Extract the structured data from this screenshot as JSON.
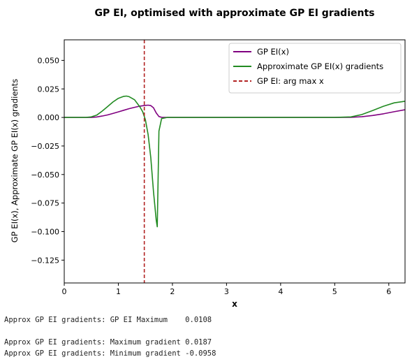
{
  "chart_data": {
    "type": "line",
    "title": "GP EI, optimised with approximate GP EI gradients",
    "xlabel": "x",
    "ylabel": "GP EI(x), Approximate GP EI(x) gradients",
    "xlim": [
      0,
      6.3
    ],
    "ylim": [
      -0.145,
      0.068
    ],
    "xticks": [
      "0",
      "1",
      "2",
      "3",
      "4",
      "5",
      "6"
    ],
    "yticks": [
      "0.050",
      "0.025",
      "0.000",
      "−0.025",
      "−0.050",
      "−0.075",
      "−0.100",
      "−0.125"
    ],
    "grid": false,
    "legend_position": "top-right",
    "series": [
      {
        "name": "GP EI(x)",
        "color": "#800080",
        "x": [
          0,
          0.5,
          0.6,
          0.7,
          0.8,
          0.9,
          1.0,
          1.1,
          1.2,
          1.3,
          1.4,
          1.5,
          1.55,
          1.6,
          1.65,
          1.7,
          1.75,
          1.8,
          2.0,
          3.0,
          4.0,
          5.0,
          5.3,
          5.5,
          5.7,
          5.9,
          6.1,
          6.3
        ],
        "y": [
          0,
          0,
          0.0004,
          0.0012,
          0.0022,
          0.0035,
          0.0049,
          0.0063,
          0.0077,
          0.0089,
          0.0099,
          0.0106,
          0.0108,
          0.0104,
          0.0085,
          0.004,
          0.0008,
          0.0001,
          0,
          0,
          0,
          0,
          0.0001,
          0.0006,
          0.0017,
          0.0032,
          0.005,
          0.0068
        ]
      },
      {
        "name": "Approximate GP EI(x) gradients",
        "color": "#228b22",
        "x": [
          0,
          0.4,
          0.5,
          0.6,
          0.7,
          0.8,
          0.9,
          1.0,
          1.1,
          1.15,
          1.2,
          1.3,
          1.4,
          1.45,
          1.5,
          1.55,
          1.6,
          1.65,
          1.7,
          1.72,
          1.75,
          1.8,
          1.9,
          2.0,
          3.0,
          4.0,
          5.0,
          5.3,
          5.5,
          5.7,
          5.9,
          6.1,
          6.3
        ],
        "y": [
          0,
          0,
          0.0005,
          0.002,
          0.0055,
          0.0095,
          0.0135,
          0.0168,
          0.0185,
          0.0187,
          0.0182,
          0.0155,
          0.0092,
          0.005,
          -0.002,
          -0.015,
          -0.035,
          -0.065,
          -0.09,
          -0.0958,
          -0.012,
          -0.001,
          0,
          0,
          0,
          0,
          0,
          0.0005,
          0.0025,
          0.006,
          0.0098,
          0.0128,
          0.0142
        ]
      }
    ],
    "vlines": [
      {
        "name": "GP EI: arg max x",
        "x": 1.48,
        "color": "#b22222",
        "style": "dashed"
      }
    ]
  },
  "console": {
    "line1": "Approx GP EI gradients: GP EI Maximum    0.0108",
    "line2": "Approx GP EI gradients: Maximum gradient 0.0187",
    "line3": "Approx GP EI gradients: Minimum gradient -0.0958"
  }
}
